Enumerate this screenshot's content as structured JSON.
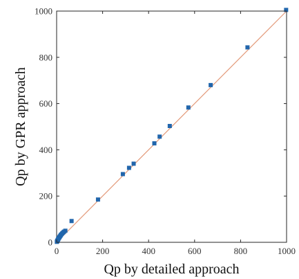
{
  "chart_data": {
    "type": "scatter",
    "title": "",
    "xlabel": "Qp by detailed approach",
    "ylabel": "Qp by GPR approach",
    "xlim": [
      0,
      1000
    ],
    "ylim": [
      0,
      1000
    ],
    "xticks": [
      0,
      200,
      400,
      600,
      800,
      1000
    ],
    "yticks": [
      0,
      200,
      400,
      600,
      800,
      1000
    ],
    "xtick_labels": [
      "0",
      "200",
      "400",
      "600",
      "800",
      "1000"
    ],
    "ytick_labels": [
      "0",
      "200",
      "400",
      "600",
      "800",
      "1000"
    ],
    "grid": false,
    "legend": "none",
    "reference_line": {
      "x": [
        0,
        1000
      ],
      "y": [
        0,
        1000
      ],
      "color": "#e39a7a"
    },
    "series": [
      {
        "color": "#2166ac",
        "marker": "square",
        "points": [
          {
            "x": 1,
            "y": 2
          },
          {
            "x": 2,
            "y": 4
          },
          {
            "x": 3,
            "y": 6
          },
          {
            "x": 4,
            "y": 8
          },
          {
            "x": 5,
            "y": 10
          },
          {
            "x": 6,
            "y": 12
          },
          {
            "x": 7,
            "y": 14
          },
          {
            "x": 8,
            "y": 16
          },
          {
            "x": 10,
            "y": 19
          },
          {
            "x": 12,
            "y": 22
          },
          {
            "x": 14,
            "y": 25
          },
          {
            "x": 16,
            "y": 28
          },
          {
            "x": 18,
            "y": 31
          },
          {
            "x": 20,
            "y": 34
          },
          {
            "x": 24,
            "y": 38
          },
          {
            "x": 28,
            "y": 42
          },
          {
            "x": 32,
            "y": 46
          },
          {
            "x": 38,
            "y": 50
          },
          {
            "x": 65,
            "y": 92
          },
          {
            "x": 180,
            "y": 185
          },
          {
            "x": 288,
            "y": 295
          },
          {
            "x": 315,
            "y": 322
          },
          {
            "x": 335,
            "y": 340
          },
          {
            "x": 425,
            "y": 428
          },
          {
            "x": 448,
            "y": 457
          },
          {
            "x": 492,
            "y": 503
          },
          {
            "x": 573,
            "y": 583
          },
          {
            "x": 670,
            "y": 680
          },
          {
            "x": 830,
            "y": 843
          },
          {
            "x": 998,
            "y": 1005
          }
        ]
      }
    ]
  }
}
